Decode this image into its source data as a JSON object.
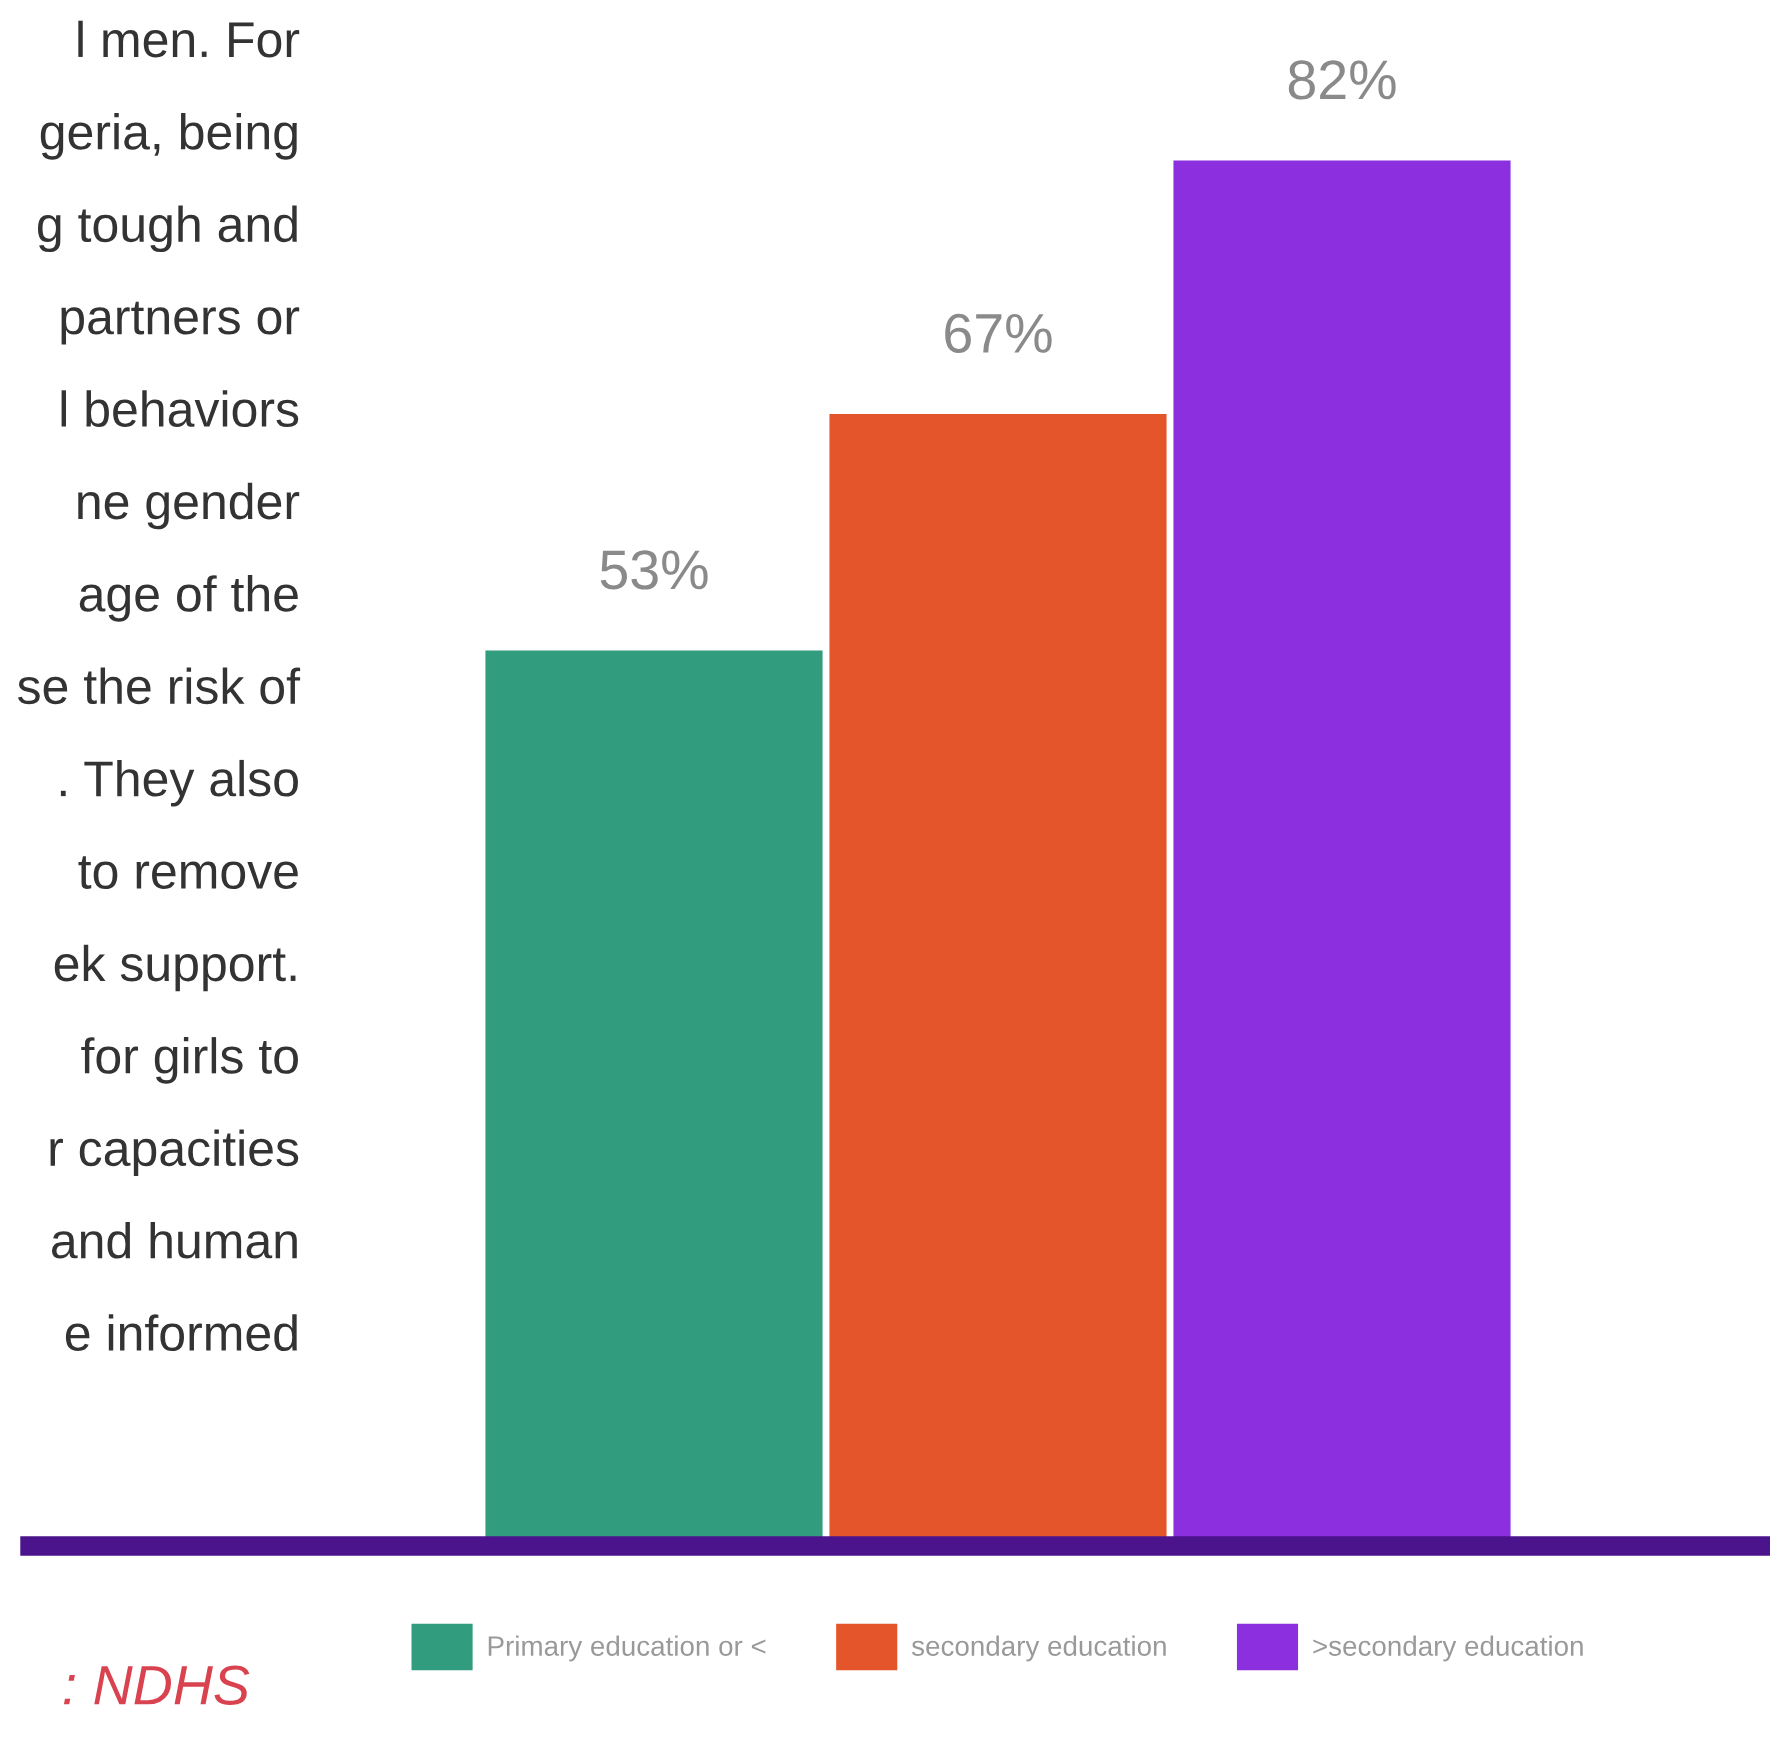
{
  "chart_data": {
    "type": "bar",
    "categories": [
      null,
      null,
      null
    ],
    "stacked": true,
    "series": [
      {
        "name": "Primary education or <",
        "color": "#329c7e",
        "values": [
          53,
          null,
          null
        ],
        "value_labels": [
          "53%",
          null,
          null
        ]
      },
      {
        "name": "secondary education",
        "color": "#e4552c",
        "values": [
          null,
          67,
          null
        ],
        "value_labels": [
          null,
          "67%",
          null
        ]
      },
      {
        "name": ">secondary education",
        "color": "#8b2fdf",
        "values": [
          null,
          null,
          82
        ],
        "value_labels": [
          null,
          null,
          "82%"
        ]
      }
    ],
    "legend": "bottom",
    "grid": false,
    "annotations": [
      "l men. For",
      "geria, being",
      "g tough and",
      "partners or",
      "l behaviors",
      "ne gender",
      "age of the",
      "se the risk of",
      ". They also",
      "to remove",
      "ek support.",
      "for girls to",
      "r capacities",
      "and human",
      "e informed",
      ": NDHS"
    ]
  }
}
